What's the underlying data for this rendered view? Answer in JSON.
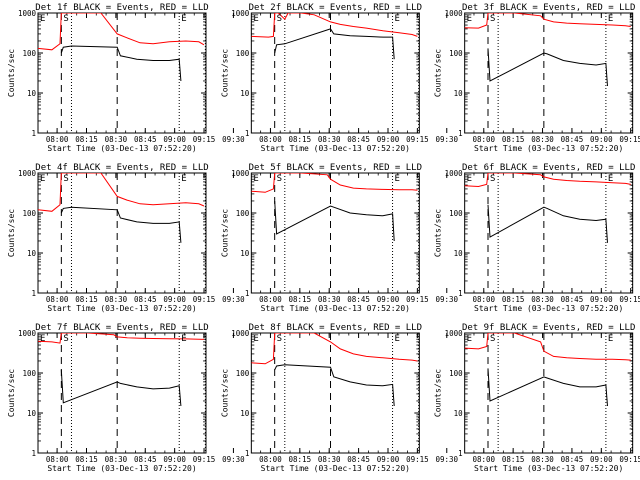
{
  "page_background": "#ffffff",
  "colors": {
    "events": "#000000",
    "lld": "#ff0000",
    "frame": "#000000"
  },
  "xlabel": "Start Time (03-Dec-13 07:52:20)",
  "ylabel": "Counts/sec",
  "x_tick_labels": [
    "08:00",
    "08:15",
    "08:30",
    "08:45",
    "09:00",
    "09:15",
    "09:30"
  ],
  "y_tick_labels": [
    "1",
    "10",
    "100",
    "1000"
  ],
  "event_marks": {
    "E": "E",
    "S": "S"
  },
  "chart_data": [
    {
      "type": "line",
      "title": "Det 1f BLACK = Events, RED = LLD",
      "xlim": [
        475,
        5620
      ],
      "ylim": [
        1,
        1000
      ],
      "yscale": "log",
      "dashed_lines": [
        1190,
        2900
      ],
      "dotted_lines": [
        1500,
        4800,
        5600
      ],
      "marks": [
        {
          "label": "E",
          "x": 475
        },
        {
          "label": "S",
          "x": 1190
        },
        {
          "label": "E",
          "x": 4800
        }
      ],
      "series": [
        {
          "name": "Events",
          "color": "#000000",
          "x": [
            1190,
            1250,
            1500,
            2900,
            3000,
            3500,
            4000,
            4500,
            4800,
            4850
          ],
          "y": [
            100,
            140,
            150,
            140,
            85,
            70,
            65,
            65,
            70,
            20
          ]
        },
        {
          "name": "LLD",
          "color": "#ff0000",
          "x": [
            475,
            900,
            1150,
            1190,
            1400,
            2400,
            2900,
            3200,
            3600,
            4000,
            4500,
            5000,
            5400,
            5560
          ],
          "y": [
            130,
            120,
            170,
            1000,
            1000,
            1000,
            300,
            240,
            180,
            170,
            190,
            200,
            190,
            160
          ]
        }
      ]
    },
    {
      "type": "line",
      "title": "Det 2f BLACK = Events, RED = LLD",
      "xlim": [
        475,
        5620
      ],
      "ylim": [
        1,
        1000
      ],
      "yscale": "log",
      "dashed_lines": [
        1190,
        2900
      ],
      "dotted_lines": [
        1500,
        4800,
        5600
      ],
      "marks": [
        {
          "label": "E",
          "x": 475
        },
        {
          "label": "S",
          "x": 1190
        },
        {
          "label": "E",
          "x": 4800
        }
      ],
      "series": [
        {
          "name": "Events",
          "color": "#000000",
          "x": [
            1190,
            1250,
            1500,
            2900,
            3000,
            3500,
            4000,
            4500,
            4800,
            4850
          ],
          "y": [
            100,
            160,
            170,
            400,
            300,
            270,
            260,
            250,
            250,
            70
          ]
        },
        {
          "name": "LLD",
          "color": "#ff0000",
          "x": [
            475,
            1000,
            1150,
            1190,
            1300,
            1500,
            1600,
            1800,
            2000,
            2400,
            2900,
            3200,
            3600,
            4000,
            4500,
            5000,
            5400,
            5560
          ],
          "y": [
            260,
            250,
            260,
            1000,
            1000,
            700,
            1000,
            1000,
            1000,
            900,
            600,
            520,
            460,
            420,
            360,
            320,
            290,
            260
          ]
        }
      ]
    },
    {
      "type": "line",
      "title": "Det 3f BLACK = Events, RED = LLD",
      "xlim": [
        475,
        5620
      ],
      "ylim": [
        1,
        1000
      ],
      "yscale": "log",
      "dashed_lines": [
        1190,
        2900
      ],
      "dotted_lines": [
        1500,
        4800,
        5600
      ],
      "marks": [
        {
          "label": "E",
          "x": 475
        },
        {
          "label": "S",
          "x": 1190
        },
        {
          "label": "E",
          "x": 4800
        }
      ],
      "series": [
        {
          "name": "Events",
          "color": "#000000",
          "x": [
            1190,
            1250,
            2900,
            3000,
            3500,
            4000,
            4500,
            4800,
            4850
          ],
          "y": [
            130,
            20,
            100,
            95,
            65,
            55,
            50,
            55,
            15
          ]
        },
        {
          "name": "LLD",
          "color": "#ff0000",
          "x": [
            475,
            900,
            1150,
            1190,
            1400,
            2000,
            2800,
            2900,
            3200,
            3600,
            4000,
            4500,
            5000,
            5400,
            5560
          ],
          "y": [
            430,
            420,
            500,
            1000,
            1000,
            1000,
            850,
            700,
            600,
            560,
            540,
            520,
            500,
            480,
            460
          ]
        }
      ]
    },
    {
      "type": "line",
      "title": "Det 4f BLACK = Events, RED = LLD",
      "xlim": [
        475,
        5620
      ],
      "ylim": [
        1,
        1000
      ],
      "yscale": "log",
      "dashed_lines": [
        1190,
        2900
      ],
      "dotted_lines": [
        1500,
        4800,
        5600
      ],
      "marks": [
        {
          "label": "E",
          "x": 475
        },
        {
          "label": "S",
          "x": 1190
        },
        {
          "label": "E",
          "x": 4800
        }
      ],
      "series": [
        {
          "name": "Events",
          "color": "#000000",
          "x": [
            1190,
            1250,
            1500,
            2900,
            3000,
            3500,
            4000,
            4500,
            4800,
            4850
          ],
          "y": [
            100,
            130,
            140,
            120,
            75,
            60,
            55,
            55,
            60,
            18
          ]
        },
        {
          "name": "LLD",
          "color": "#ff0000",
          "x": [
            475,
            900,
            1150,
            1190,
            1400,
            2400,
            2900,
            3200,
            3600,
            4000,
            4500,
            5000,
            5400,
            5560
          ],
          "y": [
            120,
            110,
            160,
            1000,
            1000,
            1000,
            260,
            210,
            170,
            160,
            170,
            180,
            170,
            150
          ]
        }
      ]
    },
    {
      "type": "line",
      "title": "Det 5f BLACK = Events, RED = LLD",
      "xlim": [
        475,
        5620
      ],
      "ylim": [
        1,
        1000
      ],
      "yscale": "log",
      "dashed_lines": [
        1190,
        2900
      ],
      "dotted_lines": [
        1500,
        4800,
        5600
      ],
      "marks": [
        {
          "label": "E",
          "x": 475
        },
        {
          "label": "S",
          "x": 1190
        },
        {
          "label": "E",
          "x": 4800
        }
      ],
      "series": [
        {
          "name": "Events",
          "color": "#000000",
          "x": [
            1190,
            1250,
            2900,
            3000,
            3500,
            4000,
            4500,
            4800,
            4850
          ],
          "y": [
            200,
            30,
            150,
            140,
            100,
            90,
            85,
            95,
            20
          ]
        },
        {
          "name": "LLD",
          "color": "#ff0000",
          "x": [
            475,
            900,
            1150,
            1190,
            1400,
            2000,
            2800,
            2900,
            3200,
            3600,
            4000,
            4500,
            5000,
            5400,
            5560
          ],
          "y": [
            350,
            330,
            400,
            1000,
            1000,
            1000,
            900,
            700,
            500,
            420,
            400,
            390,
            380,
            380,
            370
          ]
        }
      ]
    },
    {
      "type": "line",
      "title": "Det 6f BLACK = Events, RED = LLD",
      "xlim": [
        475,
        5620
      ],
      "ylim": [
        1,
        1000
      ],
      "yscale": "log",
      "dashed_lines": [
        1190,
        2900
      ],
      "dotted_lines": [
        1500,
        4800,
        5600
      ],
      "marks": [
        {
          "label": "E",
          "x": 475
        },
        {
          "label": "S",
          "x": 1190
        },
        {
          "label": "E",
          "x": 4800
        }
      ],
      "series": [
        {
          "name": "Events",
          "color": "#000000",
          "x": [
            1190,
            1250,
            2900,
            3000,
            3500,
            4000,
            4500,
            4800,
            4850
          ],
          "y": [
            160,
            25,
            140,
            130,
            85,
            70,
            65,
            70,
            18
          ]
        },
        {
          "name": "LLD",
          "color": "#ff0000",
          "x": [
            475,
            900,
            1150,
            1190,
            1400,
            2000,
            2800,
            2900,
            3200,
            3600,
            4000,
            4500,
            5000,
            5400,
            5560
          ],
          "y": [
            480,
            460,
            520,
            1000,
            1000,
            1000,
            900,
            800,
            700,
            650,
            620,
            600,
            570,
            550,
            520
          ]
        }
      ]
    },
    {
      "type": "line",
      "title": "Det 7f BLACK = Events, RED = LLD",
      "xlim": [
        475,
        5620
      ],
      "ylim": [
        1,
        1000
      ],
      "yscale": "log",
      "dashed_lines": [
        1190,
        2900
      ],
      "dotted_lines": [
        1500,
        4800,
        5600
      ],
      "marks": [
        {
          "label": "E",
          "x": 475
        },
        {
          "label": "S",
          "x": 1190
        },
        {
          "label": "E",
          "x": 4800
        }
      ],
      "series": [
        {
          "name": "Events",
          "color": "#000000",
          "x": [
            1190,
            1250,
            2900,
            3000,
            3500,
            4000,
            4500,
            4800,
            4850
          ],
          "y": [
            120,
            18,
            60,
            55,
            45,
            40,
            42,
            48,
            15
          ]
        },
        {
          "name": "LLD",
          "color": "#ff0000",
          "x": [
            475,
            900,
            1150,
            1190,
            1400,
            2000,
            2800,
            2900,
            3200,
            3600,
            4000,
            4500,
            5000,
            5400,
            5560
          ],
          "y": [
            620,
            600,
            560,
            1000,
            1000,
            1000,
            900,
            800,
            760,
            740,
            730,
            720,
            710,
            700,
            690
          ]
        }
      ]
    },
    {
      "type": "line",
      "title": "Det 8f BLACK = Events, RED = LLD",
      "xlim": [
        475,
        5620
      ],
      "ylim": [
        1,
        1000
      ],
      "yscale": "log",
      "dashed_lines": [
        1190,
        2900
      ],
      "dotted_lines": [
        1500,
        4800,
        5600
      ],
      "marks": [
        {
          "label": "E",
          "x": 475
        },
        {
          "label": "S",
          "x": 1190
        },
        {
          "label": "E",
          "x": 4800
        }
      ],
      "series": [
        {
          "name": "Events",
          "color": "#000000",
          "x": [
            1190,
            1250,
            1500,
            2900,
            3000,
            3500,
            4000,
            4500,
            4800,
            4850
          ],
          "y": [
            120,
            150,
            160,
            140,
            80,
            60,
            50,
            48,
            52,
            15
          ]
        },
        {
          "name": "LLD",
          "color": "#ff0000",
          "x": [
            475,
            900,
            1150,
            1190,
            1400,
            2400,
            2900,
            3200,
            3600,
            4000,
            4500,
            5000,
            5400,
            5560
          ],
          "y": [
            180,
            170,
            220,
            1000,
            1000,
            1000,
            600,
            400,
            300,
            260,
            240,
            220,
            210,
            200
          ]
        }
      ]
    },
    {
      "type": "line",
      "title": "Det 9f BLACK = Events, RED = LLD",
      "xlim": [
        475,
        5620
      ],
      "ylim": [
        1,
        1000
      ],
      "yscale": "log",
      "dashed_lines": [
        1190,
        2900
      ],
      "dotted_lines": [
        1500,
        4800,
        5600
      ],
      "marks": [
        {
          "label": "E",
          "x": 475
        },
        {
          "label": "S",
          "x": 1190
        },
        {
          "label": "E",
          "x": 4800
        }
      ],
      "series": [
        {
          "name": "Events",
          "color": "#000000",
          "x": [
            1190,
            1250,
            2900,
            3000,
            3500,
            4000,
            4500,
            4800,
            4850
          ],
          "y": [
            130,
            20,
            80,
            75,
            55,
            45,
            45,
            50,
            15
          ]
        },
        {
          "name": "LLD",
          "color": "#ff0000",
          "x": [
            475,
            900,
            1150,
            1190,
            1400,
            2000,
            2800,
            2900,
            3200,
            3600,
            4000,
            4500,
            5000,
            5400,
            5560
          ],
          "y": [
            420,
            400,
            460,
            1000,
            1000,
            1000,
            600,
            350,
            260,
            240,
            230,
            220,
            220,
            215,
            210
          ]
        }
      ]
    }
  ]
}
